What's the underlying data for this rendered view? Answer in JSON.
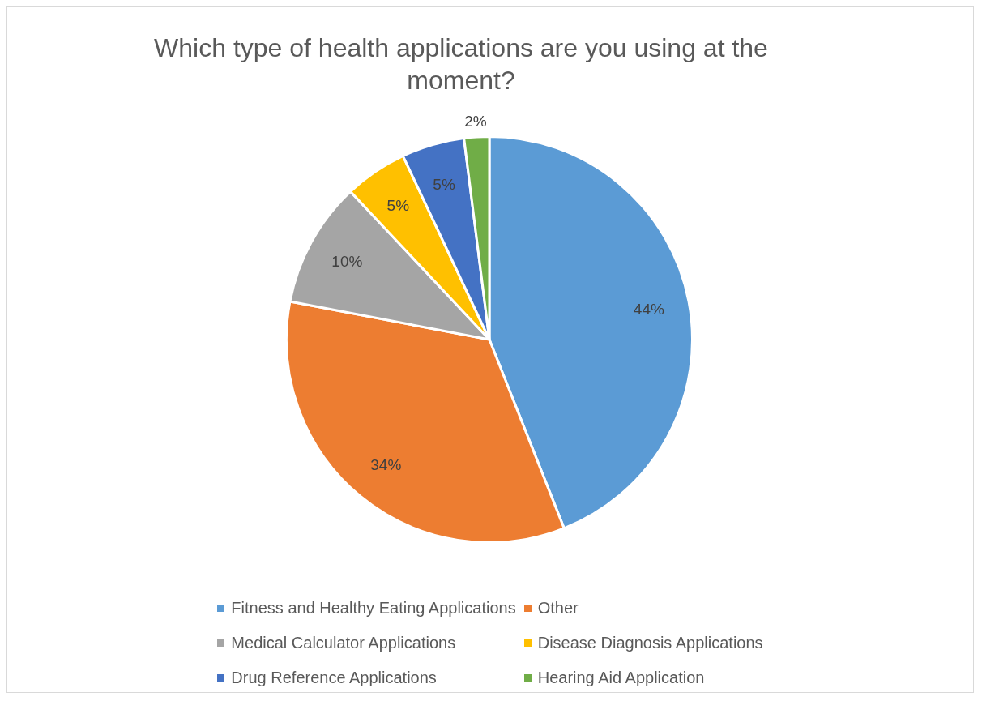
{
  "chart_data": {
    "type": "pie",
    "title": "Which type of health applications are you using at the moment?",
    "categories": [
      "Fitness and Healthy Eating Applications",
      "Other",
      "Medical Calculator Applications",
      "Disease Diagnosis Applications",
      "Drug Reference Applications",
      "Hearing Aid Application"
    ],
    "values": [
      44,
      34,
      10,
      5,
      5,
      2
    ],
    "colors": [
      "#5b9bd5",
      "#ed7d31",
      "#a5a5a5",
      "#ffc000",
      "#4472c4",
      "#70ad47"
    ],
    "value_labels": [
      "44%",
      "34%",
      "10%",
      "5%",
      "5%",
      "2%"
    ],
    "legend": "bottom"
  }
}
